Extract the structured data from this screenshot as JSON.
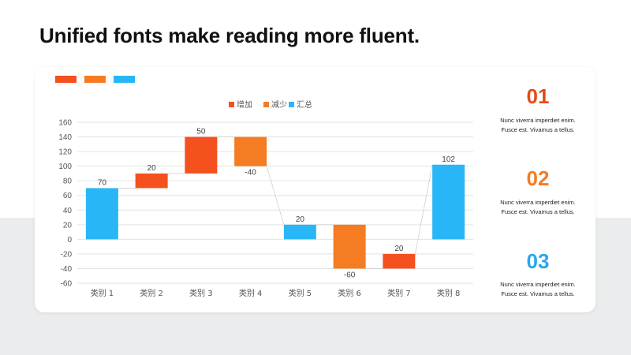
{
  "title": "Unified fonts make reading more fluent.",
  "colors": {
    "increase": "#f4511e",
    "decrease": "#f57c22",
    "total": "#29b6f6",
    "num_01": "#e64a19",
    "num_02": "#f57c22",
    "num_03": "#29a8f0"
  },
  "side_items": [
    {
      "num": "01",
      "line1": "Nunc viverra imperdiet enim.",
      "line2": "Fusce est. Vivamus a tellus."
    },
    {
      "num": "02",
      "line1": "Nunc viverra imperdiet enim.",
      "line2": "Fusce est. Vivamus a tellus."
    },
    {
      "num": "03",
      "line1": "Nunc viverra imperdiet enim.",
      "line2": "Fusce est. Vivamus a tellus."
    }
  ],
  "chart_data": {
    "type": "bar",
    "subtype": "waterfall",
    "legend": [
      "增加",
      "减少",
      "汇总"
    ],
    "legend_position": "top-center",
    "categories": [
      "类别 1",
      "类别 2",
      "类别 3",
      "类别 4",
      "类别 5",
      "类别 6",
      "类别 7",
      "类别 8"
    ],
    "values": [
      70,
      20,
      50,
      -40,
      20,
      -60,
      20,
      102
    ],
    "bars": [
      {
        "kind": "total",
        "start": 0,
        "end": 70,
        "label": "70"
      },
      {
        "kind": "increase",
        "start": 70,
        "end": 90,
        "label": "20"
      },
      {
        "kind": "increase",
        "start": 90,
        "end": 140,
        "label": "50"
      },
      {
        "kind": "decrease",
        "start": 140,
        "end": 100,
        "label": "-40"
      },
      {
        "kind": "total",
        "start": 0,
        "end": 20,
        "label": "20"
      },
      {
        "kind": "decrease",
        "start": 20,
        "end": -40,
        "label": "-60"
      },
      {
        "kind": "increase",
        "start": -40,
        "end": -20,
        "label": "20"
      },
      {
        "kind": "total",
        "start": 0,
        "end": 102,
        "label": "102"
      }
    ],
    "y_ticks": [
      "160",
      "140",
      "120",
      "100",
      "80",
      "60",
      "40",
      "20",
      "0",
      "-20",
      "-40",
      "-60"
    ],
    "ylim": [
      -60,
      160
    ],
    "grid": true
  }
}
